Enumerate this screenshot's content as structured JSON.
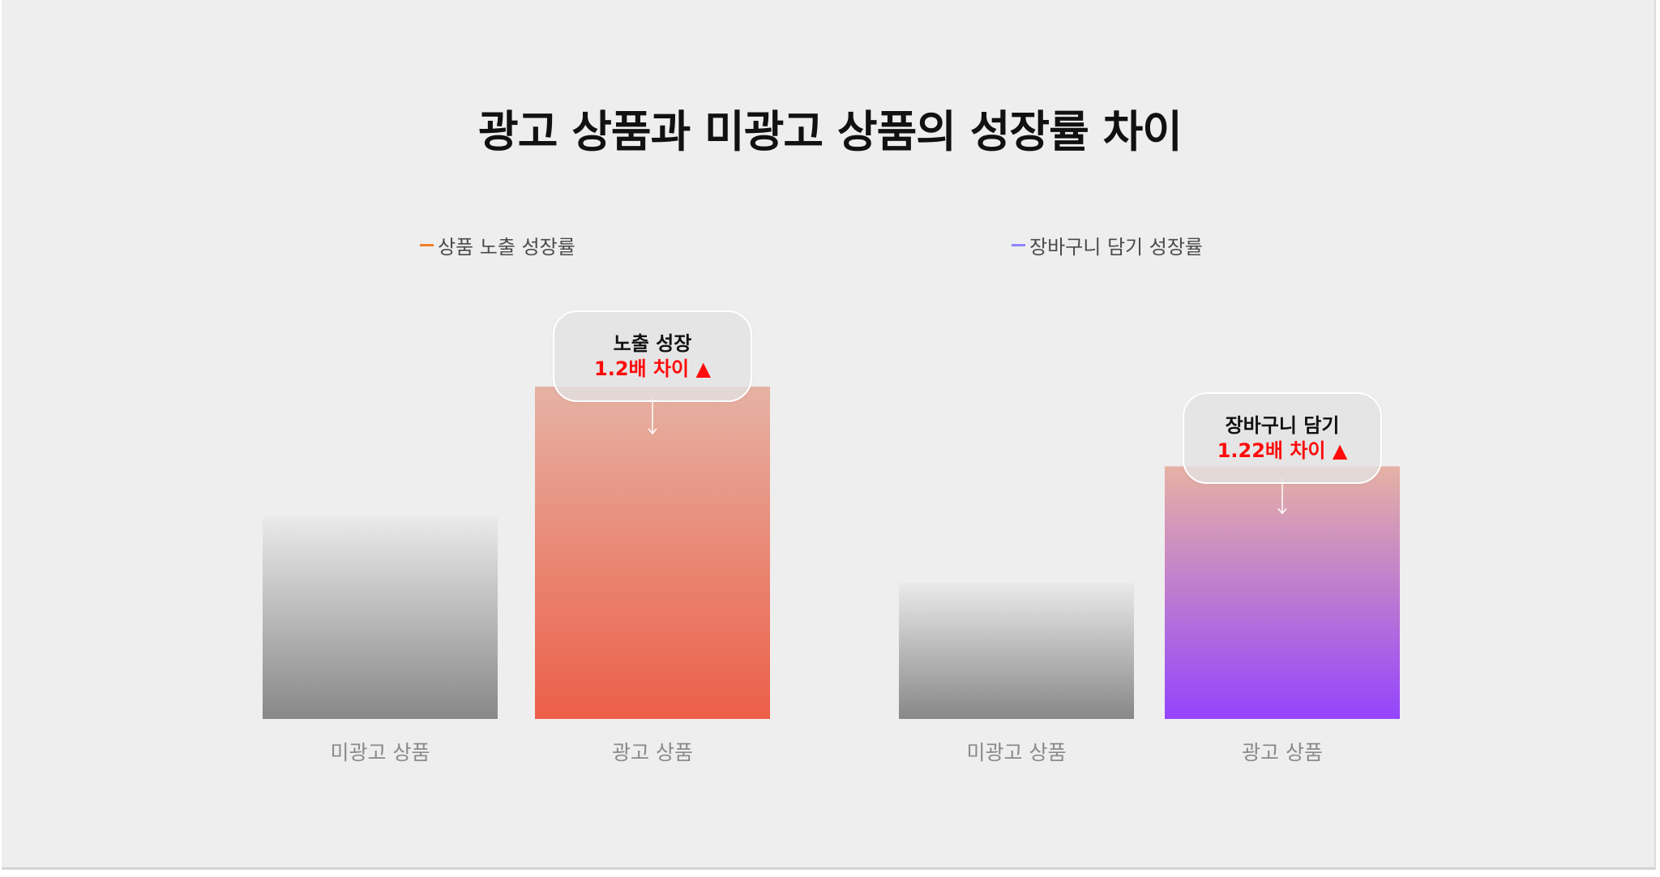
{
  "chart_data": {
    "type": "bar",
    "title": "광고 상품과 미광고 상품의 성장률 차이",
    "ylim": [
      0,
      1.4
    ],
    "grid": false,
    "panels": [
      {
        "series_name": "상품 노출 성장률",
        "categories": [
          "미광고 상품",
          "광고 상품"
        ],
        "values": [
          0.61,
          1.0
        ],
        "colors": {
          "legend": "#f07f2a",
          "base_bar_top": "#eaeaea",
          "base_bar_bottom": "#888888",
          "bar_top": "#e6b2a4",
          "bar_bottom": "#ec5f48"
        },
        "callout": {
          "title": "노출 성장",
          "value": "1.2배 차이 ▲"
        }
      },
      {
        "series_name": "장바구니 담기 성장률",
        "categories": [
          "미광고 상품",
          "광고 상품"
        ],
        "values": [
          0.41,
          0.76
        ],
        "colors": {
          "legend": "#8f85ff",
          "base_bar_top": "#eaeaea",
          "base_bar_bottom": "#888888",
          "bar_top": "#e6b2a4",
          "bar_bottom": "#9544fd"
        },
        "callout": {
          "title": "장바구니 담기",
          "value": "1.22배 차이 ▲"
        }
      }
    ]
  }
}
